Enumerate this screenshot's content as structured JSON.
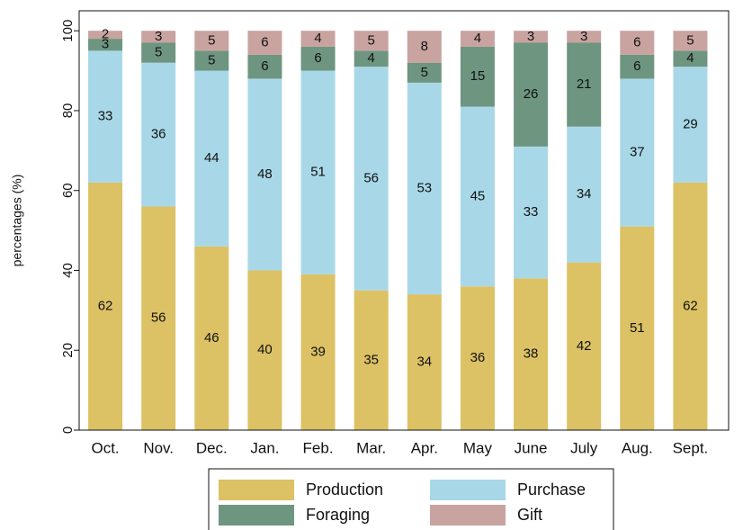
{
  "chart_data": {
    "type": "stacked_bar",
    "y_label": "percentages (%)",
    "categories": [
      "Oct.",
      "Nov.",
      "Dec.",
      "Jan.",
      "Feb.",
      "Mar.",
      "Apr.",
      "May",
      "June",
      "July",
      "Aug.",
      "Sept."
    ],
    "series": [
      {
        "name": "Production",
        "color": "#dcc165",
        "values": [
          62,
          56,
          46,
          40,
          39,
          35,
          34,
          36,
          38,
          42,
          51,
          62
        ]
      },
      {
        "name": "Purchase",
        "color": "#a8d8e8",
        "values": [
          33,
          36,
          44,
          48,
          51,
          56,
          53,
          45,
          33,
          34,
          37,
          29
        ]
      },
      {
        "name": "Foraging",
        "color": "#6d9580",
        "values": [
          3,
          5,
          5,
          6,
          6,
          4,
          5,
          15,
          26,
          21,
          6,
          4
        ]
      },
      {
        "name": "Gift",
        "color": "#c8a3a0",
        "values": [
          2,
          3,
          5,
          6,
          4,
          5,
          8,
          4,
          3,
          3,
          6,
          5
        ]
      }
    ],
    "ylim": [
      0,
      105
    ],
    "yticks": [
      0,
      20,
      40,
      60,
      80,
      100
    ],
    "legend": "bottom"
  }
}
